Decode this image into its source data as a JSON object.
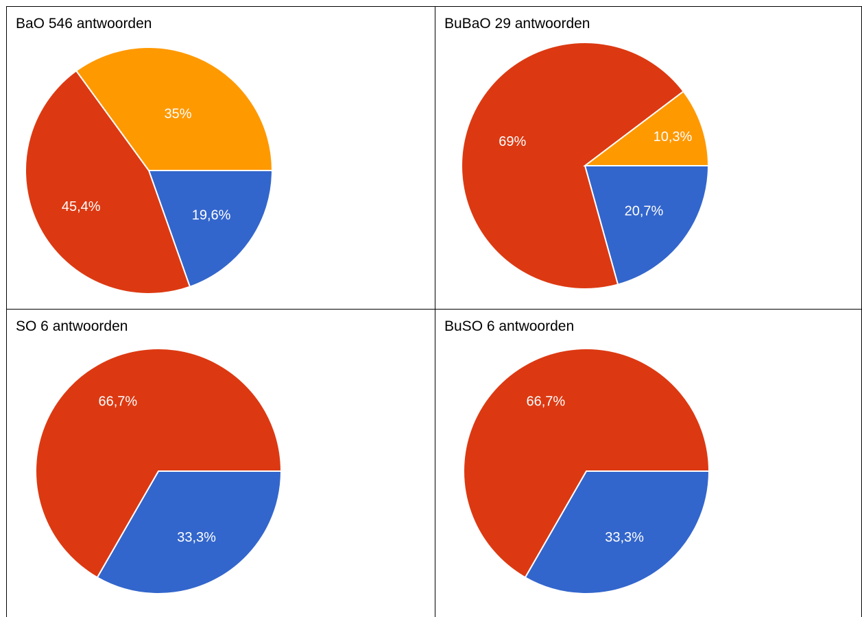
{
  "colors": {
    "blue": "#3366cc",
    "red": "#dc3912",
    "orange": "#ff9900"
  },
  "chart_data": [
    {
      "type": "pie",
      "title": "BaO 546 antwoorden",
      "slices": [
        {
          "value": 19.6,
          "label": "19,6%",
          "color": "#3366cc"
        },
        {
          "value": 45.4,
          "label": "45,4%",
          "color": "#dc3912"
        },
        {
          "value": 35.0,
          "label": "35%",
          "color": "#ff9900"
        }
      ]
    },
    {
      "type": "pie",
      "title": "BuBaO 29 antwoorden",
      "slices": [
        {
          "value": 20.7,
          "label": "20,7%",
          "color": "#3366cc"
        },
        {
          "value": 69.0,
          "label": "69%",
          "color": "#dc3912"
        },
        {
          "value": 10.3,
          "label": "10,3%",
          "color": "#ff9900"
        }
      ]
    },
    {
      "type": "pie",
      "title": "SO 6 antwoorden",
      "slices": [
        {
          "value": 33.3,
          "label": "33,3%",
          "color": "#3366cc"
        },
        {
          "value": 66.7,
          "label": "66,7%",
          "color": "#dc3912"
        }
      ]
    },
    {
      "type": "pie",
      "title": "BuSO 6 antwoorden",
      "slices": [
        {
          "value": 33.3,
          "label": "33,3%",
          "color": "#3366cc"
        },
        {
          "value": 66.7,
          "label": "66,7%",
          "color": "#dc3912"
        }
      ]
    }
  ]
}
